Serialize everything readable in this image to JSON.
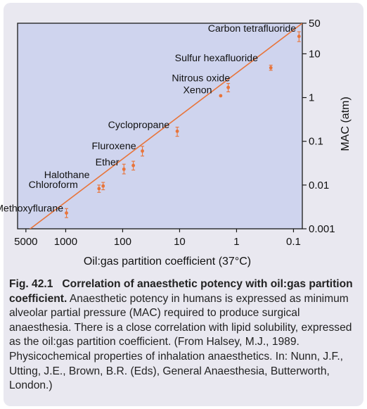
{
  "chart_data": {
    "type": "scatter",
    "xlabel": "Oil:gas partition coefficient (37°C)",
    "ylabel": "MAC (atm)",
    "x_scale": "log",
    "y_scale": "log",
    "x_axis_reversed": true,
    "xlim": [
      7000,
      0.07
    ],
    "ylim": [
      0.001,
      50
    ],
    "x_ticks": [
      {
        "value": 5000,
        "label": "5000"
      },
      {
        "value": 1000,
        "label": "1000"
      },
      {
        "value": 100,
        "label": "100"
      },
      {
        "value": 10,
        "label": "10"
      },
      {
        "value": 1,
        "label": "1"
      },
      {
        "value": 0.1,
        "label": "0.1"
      }
    ],
    "y_ticks": [
      {
        "value": 0.001,
        "label": "0.001"
      },
      {
        "value": 0.01,
        "label": "0.01"
      },
      {
        "value": 0.1,
        "label": "0.1"
      },
      {
        "value": 1,
        "label": "1"
      },
      {
        "value": 10,
        "label": "10"
      },
      {
        "value": 50,
        "label": "50"
      }
    ],
    "y_axis_side": "right",
    "plot_background": "#cfd4ee",
    "marker_color": "#e8743a",
    "fit_line_color": "#e8743a",
    "fit_line": {
      "x": [
        6500,
        0.07
      ],
      "y": [
        0.00065,
        50
      ]
    },
    "points": [
      {
        "name": "Carbon tetrafluoride",
        "x": 0.08,
        "y": 25,
        "err_low": 19,
        "err_high": 32
      },
      {
        "name": "Sulfur hexafluoride",
        "x": 0.25,
        "y": 4.8,
        "err_low": 4.2,
        "err_high": 5.5
      },
      {
        "name": "Nitrous oxide",
        "x": 1.4,
        "y": 1.7,
        "err_low": 1.35,
        "err_high": 2.1
      },
      {
        "name": "Xenon",
        "x": 1.9,
        "y": 1.1,
        "err_low": 1.1,
        "err_high": 1.1
      },
      {
        "name": "Cyclopropane",
        "x": 11,
        "y": 0.17,
        "err_low": 0.13,
        "err_high": 0.21
      },
      {
        "name": "Fluroxene",
        "x": 45,
        "y": 0.06,
        "err_low": 0.046,
        "err_high": 0.077
      },
      {
        "name": "Ether",
        "x": 65,
        "y": 0.028,
        "err_low": 0.022,
        "err_high": 0.035
      },
      {
        "name": "Ether",
        "x": 95,
        "y": 0.023,
        "err_low": 0.018,
        "err_high": 0.03
      },
      {
        "name": "Halothane",
        "x": 220,
        "y": 0.0095,
        "err_low": 0.0078,
        "err_high": 0.0115
      },
      {
        "name": "Chloroform",
        "x": 260,
        "y": 0.0083,
        "err_low": 0.0068,
        "err_high": 0.01
      },
      {
        "name": "Methoxyflurane",
        "x": 970,
        "y": 0.0023,
        "err_low": 0.0018,
        "err_high": 0.0029
      }
    ],
    "annotations": [
      {
        "text": "Carbon tetrafluoride",
        "x": 0.09,
        "y": 32
      },
      {
        "text": "Sulfur hexafluoride",
        "x": 0.42,
        "y": 6.8
      },
      {
        "text": "Nitrous oxide",
        "x": 1.3,
        "y": 2.35
      },
      {
        "text": "Xenon",
        "x": 2.7,
        "y": 1.25
      },
      {
        "text": "Cyclopropane",
        "x": 15,
        "y": 0.2
      },
      {
        "text": "Fluroxene",
        "x": 58,
        "y": 0.066
      },
      {
        "text": "Ether",
        "x": 115,
        "y": 0.028
      },
      {
        "text": "Halothane",
        "x": 380,
        "y": 0.0145
      },
      {
        "text": "Chloroform",
        "x": 610,
        "y": 0.0086
      },
      {
        "text": "Methoxyflurane",
        "x": 1100,
        "y": 0.0025
      }
    ]
  },
  "caption": {
    "label": "Fig. 42.1",
    "title": "Correlation of anaesthetic potency with oil:gas partition coefficient.",
    "body": "Anaesthetic potency in humans is expressed as minimum alveolar partial pressure (MAC) required to produce surgical anaesthesia. There is a close correlation with lipid solubility, expressed as the oil:gas partition coefficient. (From Halsey, M.J., 1989. Physicochemical properties of inhalation anaesthetics. In: Nunn, J.F., Utting, J.E., Brown, B.R. (Eds), General Anaesthesia, Butterworth, London.)"
  }
}
